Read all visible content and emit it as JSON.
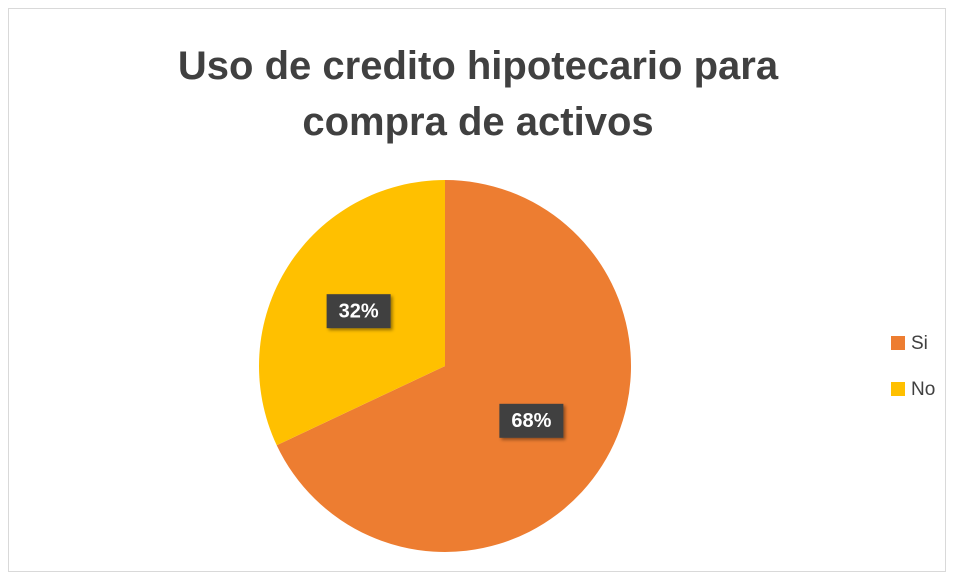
{
  "chart_data": {
    "type": "pie",
    "title": "Uso de credito hipotecario para compra de activos",
    "categories": [
      "Si",
      "No"
    ],
    "values": [
      68,
      32
    ],
    "value_labels": [
      "68%",
      "32%"
    ],
    "colors": [
      "#ED7D31",
      "#FFC000"
    ],
    "legend": "right"
  }
}
